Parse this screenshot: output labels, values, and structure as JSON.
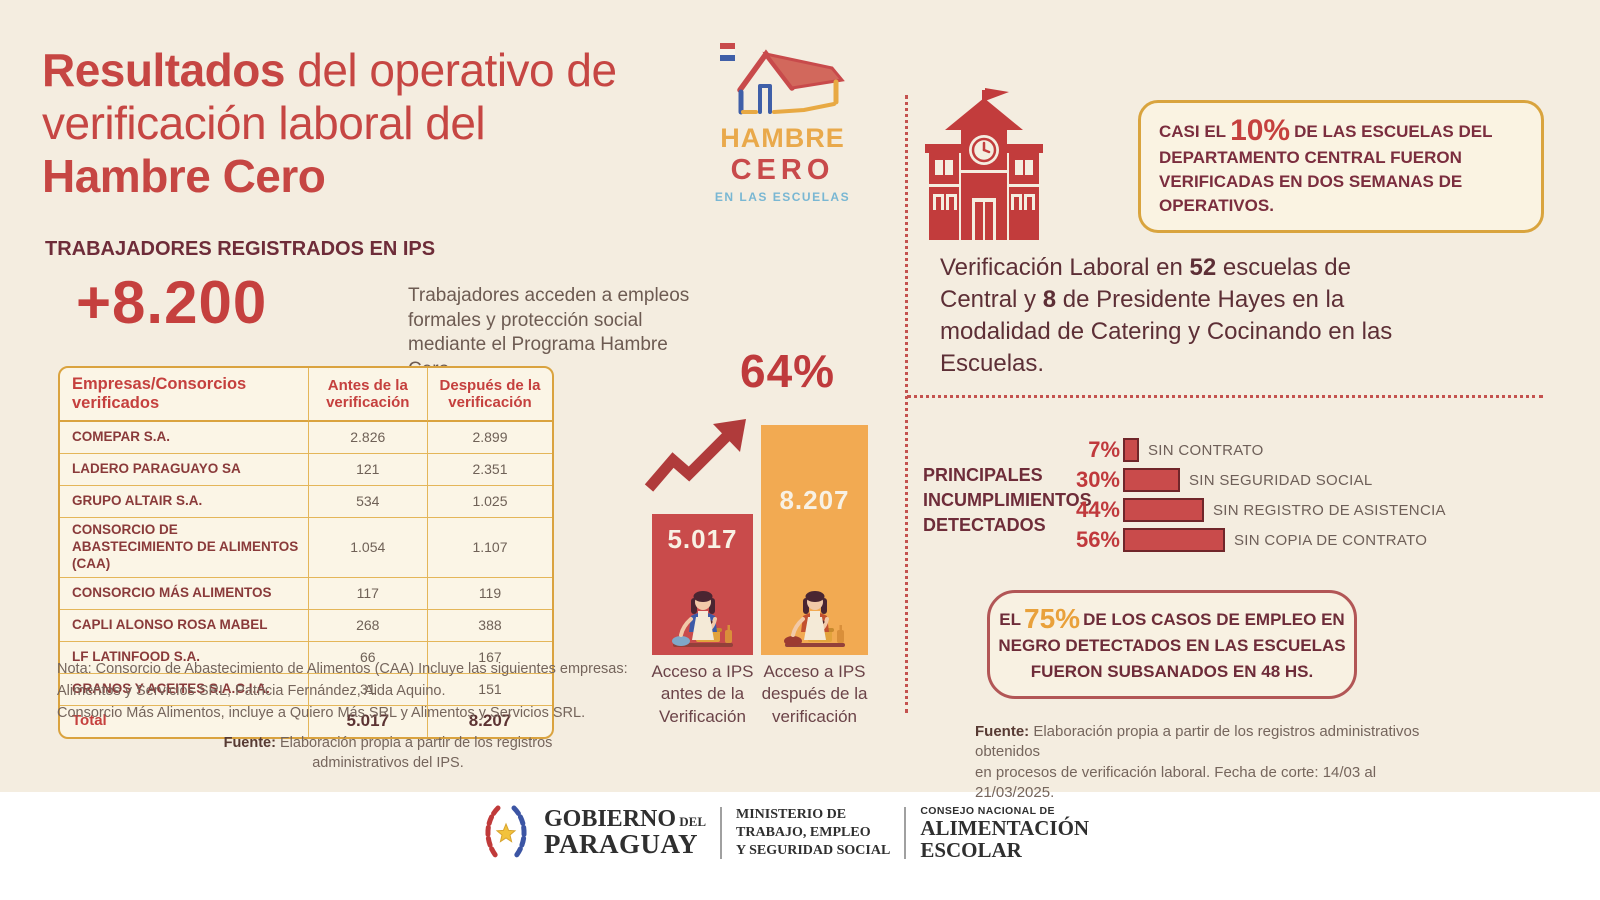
{
  "colors": {
    "background": "#f4ede0",
    "accent_red": "#c5403e",
    "dark_maroon": "#6e2c39",
    "gold": "#daa33f",
    "bar_red": "#c94b4b",
    "bar_orange": "#f2aa52",
    "logo_amber": "#e9a94b",
    "logo_blue": "#79b7d3",
    "orange_pct": "#e9a13b"
  },
  "header": {
    "title_l1_bold": "Resultados",
    "title_l1_rest": " del operativo de",
    "title_l2": "verificación laboral del",
    "title_l3_bold": "Hambre Cero"
  },
  "logo": {
    "hambre": "HAMBRE",
    "cero": "CERO",
    "sub": "EN LAS ESCUELAS"
  },
  "left": {
    "section_label": "TRABAJADORES REGISTRADOS EN IPS",
    "big_number": "+8.200",
    "big_desc": "Trabajadores acceden a empleos formales y protección social mediante el Programa Hambre Cero."
  },
  "table": {
    "headers": [
      "Empresas/Consorcios verificados",
      "Antes de la verificación",
      "Después de la verificación"
    ],
    "rows": [
      {
        "name": "COMEPAR S.A.",
        "antes": "2.826",
        "despues": "2.899"
      },
      {
        "name": "LADERO PARAGUAYO SA",
        "antes": "121",
        "despues": "2.351"
      },
      {
        "name": "GRUPO ALTAIR S.A.",
        "antes": "534",
        "despues": "1.025"
      },
      {
        "name": "CONSORCIO DE ABASTECIMIENTO DE ALIMENTOS (CAA)",
        "antes": "1.054",
        "despues": "1.107"
      },
      {
        "name": "CONSORCIO MÁS ALIMENTOS",
        "antes": "117",
        "despues": "119"
      },
      {
        "name": "CAPLI ALONSO ROSA MABEL",
        "antes": "268",
        "despues": "388"
      },
      {
        "name": "LF LATINFOOD S.A.",
        "antes": "66",
        "despues": "167"
      },
      {
        "name": "GRANOS Y ACEITES S.A.C.I.A.",
        "antes": "31",
        "despues": "151"
      }
    ],
    "total": {
      "label": "Total",
      "antes": "5.017",
      "despues": "8.207"
    }
  },
  "note": {
    "l1": "Nota: Consorcio de Abastecimiento de Alimentos (CAA) Incluye las siguientes empresas:",
    "l2": "Alimentos y Servicios SRL, Patricia Fernández, Aida Aquino.",
    "l3": "Consorcio Más Alimentos, incluye a Quiero Más SRL y Alimentos y Servicios SRL."
  },
  "fuente_left": {
    "label": "Fuente:",
    "text": " Elaboración propia a partir de los registros administrativos del IPS."
  },
  "ips_chart": {
    "pct": "64%",
    "before_label": "5.017",
    "after_label": "8.207",
    "before_num": 5017,
    "after_num": 8207,
    "caption_before": {
      "l1": "Acceso a IPS",
      "l2": "antes de la",
      "l3": "Verificación"
    },
    "caption_after": {
      "l1": "Acceso a IPS",
      "l2": "después de la",
      "l3": "verificación"
    }
  },
  "right": {
    "box10": {
      "pre": "CASI EL",
      "pct": "10%",
      "post": "DE LAS ESCUELAS DEL DEPARTAMENTO CENTRAL FUERON VERIFICADAS EN DOS SEMANAS DE OPERATIVOS."
    },
    "para": {
      "s1": "Verificación Laboral en ",
      "n1": "52",
      "s2": " escuelas de Central y ",
      "n2": "8",
      "s3": " de Presidente Hayes en la modalidad de Catering y Cocinando en las Escuelas."
    },
    "inc": {
      "l1": "PRINCIPALES",
      "l2": "INCUMPLIMIENTOS",
      "l3": "DETECTADOS",
      "items": [
        {
          "pct": "7%",
          "value": 7,
          "label": "SIN CONTRATO"
        },
        {
          "pct": "30%",
          "value": 30,
          "label": "SIN SEGURIDAD SOCIAL"
        },
        {
          "pct": "44%",
          "value": 44,
          "label": "SIN REGISTRO DE ASISTENCIA"
        },
        {
          "pct": "56%",
          "value": 56,
          "label": "SIN COPIA DE CONTRATO"
        }
      ]
    },
    "box75": {
      "pre": "EL",
      "pct": "75%",
      "post": "DE LOS CASOS DE EMPLEO EN NEGRO DETECTADOS EN LAS ESCUELAS FUERON SUBSANADOS EN 48 HS."
    },
    "fuente": {
      "label": "Fuente:",
      "l1": " Elaboración propia a partir de los registros administrativos obtenidos",
      "l2": "en procesos de verificación laboral. Fecha de corte: 14/03 al 21/03/2025."
    }
  },
  "footer": {
    "gobierno_l1": "GOBIERNO",
    "gobierno_l1b": " DEL",
    "gobierno_l2": "PARAGUAY",
    "ministerio_l1": "MINISTERIO DE",
    "ministerio_l2": "TRABAJO, EMPLEO",
    "ministerio_l3": "Y SEGURIDAD SOCIAL",
    "consejo_kicker": "CONSEJO NACIONAL DE",
    "consejo_l1": "ALIMENTACIÓN",
    "consejo_l2": "ESCOLAR"
  },
  "chart_data": [
    {
      "type": "bar",
      "title": "Acceso a IPS antes y después de la verificación",
      "categories": [
        "Acceso a IPS antes de la Verificación",
        "Acceso a IPS después de la verificación"
      ],
      "values": [
        5017,
        8207
      ],
      "value_labels": [
        "5.017",
        "8.207"
      ],
      "annotation": "64%",
      "colors": [
        "#c94b4b",
        "#f2aa52"
      ],
      "ylim": [
        0,
        8207
      ],
      "grid": false,
      "legend": false
    },
    {
      "type": "bar",
      "orientation": "horizontal",
      "title": "Principales incumplimientos detectados",
      "categories": [
        "SIN CONTRATO",
        "SIN SEGURIDAD SOCIAL",
        "SIN REGISTRO DE ASISTENCIA",
        "SIN COPIA DE CONTRATO"
      ],
      "values": [
        7,
        30,
        44,
        56
      ],
      "unit": "%",
      "color": "#c94b4b",
      "xlim": [
        0,
        56
      ],
      "grid": false,
      "legend": false
    },
    {
      "type": "table",
      "title": "Empresas/Consorcios verificados",
      "columns": [
        "Empresas/Consorcios verificados",
        "Antes de la verificación",
        "Después de la verificación"
      ],
      "rows": [
        [
          "COMEPAR S.A.",
          2826,
          2899
        ],
        [
          "LADERO PARAGUAYO SA",
          121,
          2351
        ],
        [
          "GRUPO ALTAIR S.A.",
          534,
          1025
        ],
        [
          "CONSORCIO DE ABASTECIMIENTO DE ALIMENTOS (CAA)",
          1054,
          1107
        ],
        [
          "CONSORCIO MÁS ALIMENTOS",
          117,
          119
        ],
        [
          "CAPLI ALONSO ROSA MABEL",
          268,
          388
        ],
        [
          "LF LATINFOOD S.A.",
          66,
          167
        ],
        [
          "GRANOS Y ACEITES S.A.C.I.A.",
          31,
          151
        ],
        [
          "Total",
          5017,
          8207
        ]
      ]
    }
  ]
}
